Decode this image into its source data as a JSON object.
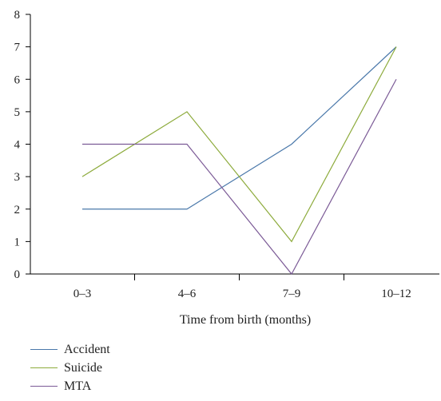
{
  "chart_data": {
    "type": "line",
    "categories": [
      "0–3",
      "4–6",
      "7–9",
      "10–12"
    ],
    "x_points": [
      0.5,
      1.5,
      2.5,
      3.5
    ],
    "series": [
      {
        "name": "Accident",
        "color": "#4a78aa",
        "values": [
          2,
          2,
          4,
          7
        ]
      },
      {
        "name": "Suicide",
        "color": "#8dab3c",
        "values": [
          3,
          5,
          1,
          7
        ]
      },
      {
        "name": "MTA",
        "color": "#7b5a96",
        "values": [
          4,
          4,
          0,
          6
        ]
      }
    ],
    "xlabel": "Time from birth (months)",
    "ylabel": "",
    "ylim": [
      0,
      8
    ],
    "yticks": [
      0,
      1,
      2,
      3,
      4,
      5,
      6,
      7,
      8
    ],
    "grid": false,
    "legend_position": "bottom-left"
  }
}
